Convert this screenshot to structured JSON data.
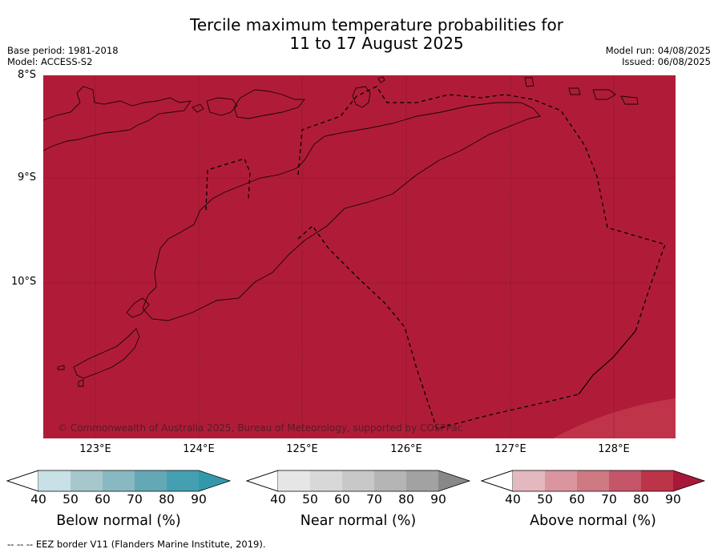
{
  "title_line1": "Tercile maximum temperature probabilities for",
  "title_line2": "11 to 17 August 2025",
  "base_period": "Base period: 1981-2018",
  "model": "Model: ACCESS-S2",
  "model_run": "Model run: 04/08/2025",
  "issued": "Issued: 06/08/2025",
  "lat_labels": [
    "8°S",
    "9°S",
    "10°S"
  ],
  "lon_labels": [
    "123°E",
    "124°E",
    "125°E",
    "126°E",
    "127°E",
    "128°E"
  ],
  "copyright": "© Commonwealth of Australia 2025, Bureau of Meteorology, supported by COSPPac",
  "colors": {
    "above_90": "#b01c38",
    "above_80": "#bf3449",
    "ocean": "#b01c38"
  },
  "colorbars": [
    {
      "title": "Below normal (%)",
      "ticks": [
        "40",
        "50",
        "60",
        "70",
        "80",
        "90"
      ],
      "colors": [
        "#c7e1e6",
        "#a6c8cd",
        "#88b9c2",
        "#65a8b5",
        "#44a0b1",
        "#3399aa"
      ]
    },
    {
      "title": "Near normal (%)",
      "ticks": [
        "40",
        "50",
        "60",
        "70",
        "80",
        "90"
      ],
      "colors": [
        "#e6e6e6",
        "#d8d8d8",
        "#c8c8c8",
        "#b5b5b5",
        "#a2a2a2",
        "#888888"
      ]
    },
    {
      "title": "Above normal (%)",
      "ticks": [
        "40",
        "50",
        "60",
        "70",
        "80",
        "90"
      ],
      "colors": [
        "#e3b8bf",
        "#da959f",
        "#cf7983",
        "#c5566a",
        "#bb3448",
        "#a8183a"
      ]
    }
  ],
  "footnote": "--  --  -- EEZ border V11 (Flanders Marine Institute, 2019)."
}
